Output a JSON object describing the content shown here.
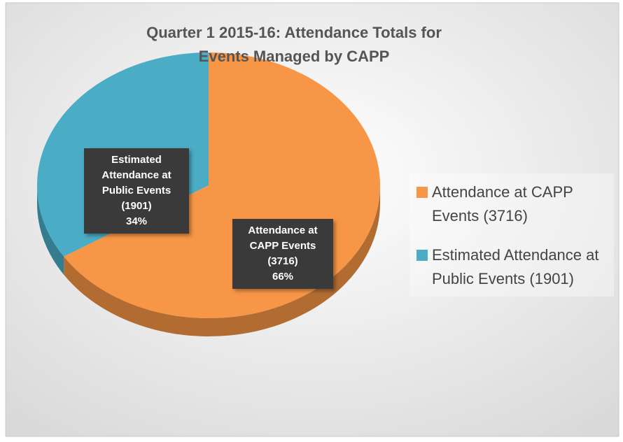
{
  "chart_data": {
    "type": "pie",
    "title": "Quarter 1 2015-16: Attendance Totals for Events Managed by CAPP",
    "categories": [
      "Attendance at CAPP Events (3716)",
      "Estimated Attendance at Public Events (1901)"
    ],
    "values": [
      66,
      34
    ],
    "value_labels": [
      "66%",
      "34%"
    ],
    "colors": [
      "#f79646",
      "#4bacc6"
    ],
    "legend": "right"
  }
}
